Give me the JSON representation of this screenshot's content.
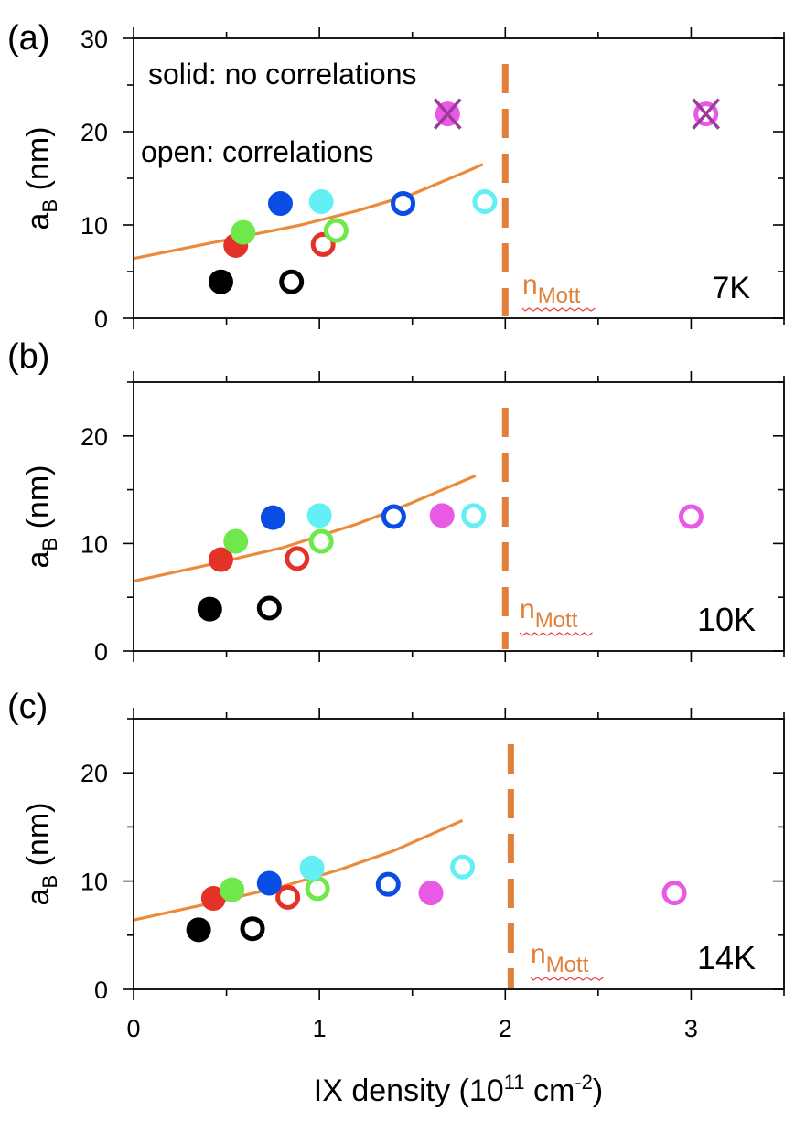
{
  "chart_data": [
    {
      "type": "scatter",
      "panel_label": "(a)",
      "temperature": "7K",
      "xlabel": "IX density (10",
      "xlabel_exp": "11",
      "xlabel_unit": " cm",
      "xlabel_unit_exp": "-2",
      "xlabel_close": ")",
      "ylabel_main": "a",
      "ylabel_sub": "B",
      "ylabel_unit": " (nm)",
      "xlim": [
        0,
        3.5
      ],
      "ylim": [
        0,
        30
      ],
      "yticks": [
        0,
        10,
        20,
        30
      ],
      "xticks": [
        0,
        1,
        2,
        3
      ],
      "annotations": [
        "solid: no correlations",
        "open: correlations"
      ],
      "mott": {
        "label": "n",
        "sub": "Mott",
        "x": 2.0,
        "color": "#e0803a"
      },
      "curve": {
        "color": "#ec8a3b",
        "x": [
          0,
          0.3,
          0.6,
          0.9,
          1.2,
          1.5,
          1.8,
          1.88
        ],
        "y": [
          6.4,
          7.6,
          8.8,
          10.0,
          11.5,
          13.3,
          15.8,
          16.5
        ]
      },
      "points": [
        {
          "x": 0.47,
          "y": 3.9,
          "color": "#000000",
          "filled": true
        },
        {
          "x": 0.85,
          "y": 3.9,
          "color": "#000000",
          "filled": false
        },
        {
          "x": 0.55,
          "y": 7.8,
          "color": "#e53228",
          "filled": true
        },
        {
          "x": 1.02,
          "y": 7.9,
          "color": "#e53228",
          "filled": false
        },
        {
          "x": 0.59,
          "y": 9.2,
          "color": "#6ee84a",
          "filled": true
        },
        {
          "x": 1.09,
          "y": 9.4,
          "color": "#6ee84a",
          "filled": false
        },
        {
          "x": 0.79,
          "y": 12.3,
          "color": "#0a4de5",
          "filled": true
        },
        {
          "x": 1.45,
          "y": 12.3,
          "color": "#0a4de5",
          "filled": false
        },
        {
          "x": 1.01,
          "y": 12.5,
          "color": "#62f0f5",
          "filled": true
        },
        {
          "x": 1.89,
          "y": 12.5,
          "color": "#62f0f5",
          "filled": false
        },
        {
          "x": 1.69,
          "y": 21.9,
          "color": "#e85ae6",
          "filled": true,
          "cross": true
        },
        {
          "x": 3.08,
          "y": 21.9,
          "color": "#e85ae6",
          "filled": false,
          "cross": true
        }
      ]
    },
    {
      "type": "scatter",
      "panel_label": "(b)",
      "temperature": "10K",
      "xlim": [
        0,
        3.5
      ],
      "ylim": [
        0,
        25
      ],
      "yticks": [
        0,
        10,
        20
      ],
      "xticks": [
        0,
        1,
        2,
        3
      ],
      "mott": {
        "label": "n",
        "sub": "Mott",
        "x": 2.0,
        "color": "#e0803a"
      },
      "curve": {
        "color": "#ec8a3b",
        "x": [
          0,
          0.4,
          0.8,
          1.2,
          1.5,
          1.84
        ],
        "y": [
          6.5,
          8.0,
          9.6,
          11.8,
          13.8,
          16.3
        ]
      },
      "points": [
        {
          "x": 0.41,
          "y": 3.9,
          "color": "#000000",
          "filled": true
        },
        {
          "x": 0.73,
          "y": 4.0,
          "color": "#000000",
          "filled": false
        },
        {
          "x": 0.47,
          "y": 8.5,
          "color": "#e53228",
          "filled": true
        },
        {
          "x": 0.88,
          "y": 8.6,
          "color": "#e53228",
          "filled": false
        },
        {
          "x": 0.55,
          "y": 10.2,
          "color": "#6ee84a",
          "filled": true
        },
        {
          "x": 1.01,
          "y": 10.2,
          "color": "#6ee84a",
          "filled": false
        },
        {
          "x": 0.75,
          "y": 12.4,
          "color": "#0a4de5",
          "filled": true
        },
        {
          "x": 1.4,
          "y": 12.5,
          "color": "#0a4de5",
          "filled": false
        },
        {
          "x": 1.0,
          "y": 12.6,
          "color": "#62f0f5",
          "filled": true
        },
        {
          "x": 1.83,
          "y": 12.6,
          "color": "#62f0f5",
          "filled": false
        },
        {
          "x": 1.66,
          "y": 12.6,
          "color": "#e85ae6",
          "filled": true
        },
        {
          "x": 3.0,
          "y": 12.5,
          "color": "#e85ae6",
          "filled": false
        }
      ]
    },
    {
      "type": "scatter",
      "panel_label": "(c)",
      "temperature": "14K",
      "xlim": [
        0,
        3.5
      ],
      "ylim": [
        0,
        25
      ],
      "yticks": [
        0,
        10,
        20
      ],
      "xticks": [
        0,
        1,
        2,
        3
      ],
      "xticklabels": [
        "0",
        "1",
        "2",
        "3"
      ],
      "mott": {
        "label": "n",
        "sub": "Mott",
        "x": 2.03,
        "color": "#e0803a"
      },
      "curve": {
        "color": "#ec8a3b",
        "x": [
          0,
          0.4,
          0.8,
          1.1,
          1.4,
          1.77
        ],
        "y": [
          6.4,
          7.9,
          9.5,
          11.0,
          12.8,
          15.6
        ]
      },
      "points": [
        {
          "x": 0.35,
          "y": 5.5,
          "color": "#000000",
          "filled": true
        },
        {
          "x": 0.64,
          "y": 5.6,
          "color": "#000000",
          "filled": false
        },
        {
          "x": 0.43,
          "y": 8.4,
          "color": "#e53228",
          "filled": true
        },
        {
          "x": 0.83,
          "y": 8.5,
          "color": "#e53228",
          "filled": false
        },
        {
          "x": 0.53,
          "y": 9.2,
          "color": "#6ee84a",
          "filled": true
        },
        {
          "x": 0.99,
          "y": 9.3,
          "color": "#6ee84a",
          "filled": false
        },
        {
          "x": 0.73,
          "y": 9.8,
          "color": "#0a4de5",
          "filled": true
        },
        {
          "x": 1.37,
          "y": 9.7,
          "color": "#0a4de5",
          "filled": false
        },
        {
          "x": 0.96,
          "y": 11.2,
          "color": "#62f0f5",
          "filled": true
        },
        {
          "x": 1.77,
          "y": 11.3,
          "color": "#62f0f5",
          "filled": false
        },
        {
          "x": 1.6,
          "y": 8.9,
          "color": "#e85ae6",
          "filled": true
        },
        {
          "x": 2.91,
          "y": 8.9,
          "color": "#e85ae6",
          "filled": false
        }
      ]
    }
  ]
}
